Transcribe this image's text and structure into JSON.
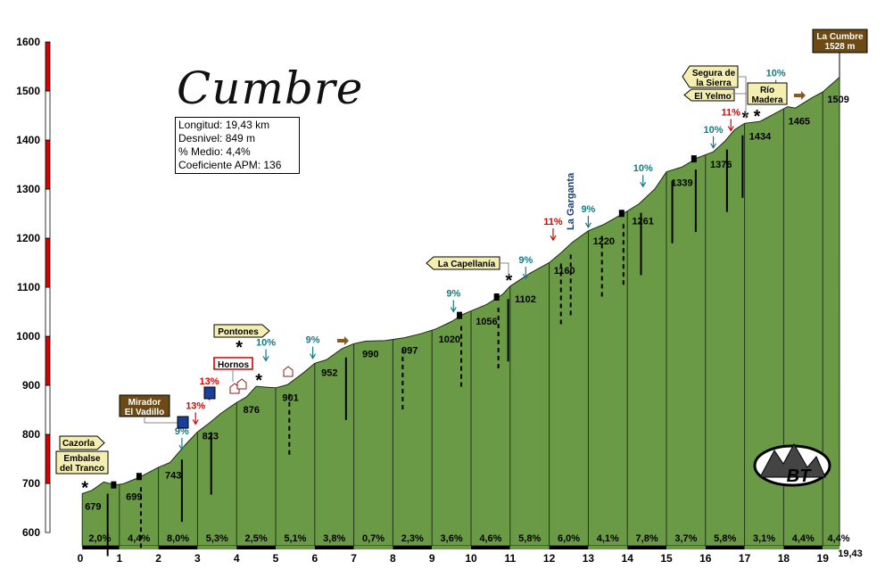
{
  "title": "Cumbre",
  "stats": {
    "distance": "Longitud: 19,43 km",
    "elevation_gain": "Desnivel: 849 m",
    "avg_grade": "% Medio: 4,4%",
    "apm": "Coeficiente APM: 136"
  },
  "summit_label": [
    "La Cumbre",
    "1528 m"
  ],
  "end_distance_label": "19,43",
  "colors": {
    "profile_fill": "#6a9a45",
    "axis_bar_red": "#d80000",
    "sign_yellow": "#f4eeb0",
    "sign_brown": "#6b4a16",
    "grade_red": "#e00000",
    "grade_teal": "#157a82"
  },
  "chart_data": {
    "type": "area",
    "xlabel": "",
    "ylabel": "",
    "xlim": [
      0,
      19.43
    ],
    "ylim": [
      600,
      1600
    ],
    "x_ticks": [
      0,
      1,
      2,
      3,
      4,
      5,
      6,
      7,
      8,
      9,
      10,
      11,
      12,
      13,
      14,
      15,
      16,
      17,
      18,
      19
    ],
    "y_ticks": [
      600,
      700,
      800,
      900,
      1000,
      1100,
      1200,
      1300,
      1400,
      1500,
      1600
    ],
    "profile": [
      {
        "x": 0.05,
        "y": 679
      },
      {
        "x": 0.3,
        "y": 686
      },
      {
        "x": 0.6,
        "y": 703
      },
      {
        "x": 0.9,
        "y": 697
      },
      {
        "x": 1.1,
        "y": 699
      },
      {
        "x": 1.5,
        "y": 712
      },
      {
        "x": 2.0,
        "y": 733
      },
      {
        "x": 2.3,
        "y": 743
      },
      {
        "x": 2.7,
        "y": 780
      },
      {
        "x": 3.0,
        "y": 805
      },
      {
        "x": 3.3,
        "y": 823
      },
      {
        "x": 3.6,
        "y": 843
      },
      {
        "x": 4.0,
        "y": 865
      },
      {
        "x": 4.25,
        "y": 876
      },
      {
        "x": 4.5,
        "y": 898
      },
      {
        "x": 4.8,
        "y": 896
      },
      {
        "x": 5.0,
        "y": 895
      },
      {
        "x": 5.3,
        "y": 901
      },
      {
        "x": 5.7,
        "y": 925
      },
      {
        "x": 6.0,
        "y": 945
      },
      {
        "x": 6.3,
        "y": 952
      },
      {
        "x": 6.7,
        "y": 975
      },
      {
        "x": 7.0,
        "y": 985
      },
      {
        "x": 7.3,
        "y": 990
      },
      {
        "x": 7.8,
        "y": 991
      },
      {
        "x": 8.3,
        "y": 997
      },
      {
        "x": 8.7,
        "y": 1005
      },
      {
        "x": 9.1,
        "y": 1015
      },
      {
        "x": 9.5,
        "y": 1030
      },
      {
        "x": 9.8,
        "y": 1045
      },
      {
        "x": 10.4,
        "y": 1065
      },
      {
        "x": 10.8,
        "y": 1085
      },
      {
        "x": 11.0,
        "y": 1102
      },
      {
        "x": 11.5,
        "y": 1128
      },
      {
        "x": 12.0,
        "y": 1150
      },
      {
        "x": 12.3,
        "y": 1170
      },
      {
        "x": 12.6,
        "y": 1192
      },
      {
        "x": 13.0,
        "y": 1215
      },
      {
        "x": 13.4,
        "y": 1228
      },
      {
        "x": 14.0,
        "y": 1255
      },
      {
        "x": 14.3,
        "y": 1270
      },
      {
        "x": 14.7,
        "y": 1300
      },
      {
        "x": 15.0,
        "y": 1335
      },
      {
        "x": 15.4,
        "y": 1345
      },
      {
        "x": 15.8,
        "y": 1364
      },
      {
        "x": 16.2,
        "y": 1376
      },
      {
        "x": 16.5,
        "y": 1398
      },
      {
        "x": 16.75,
        "y": 1421
      },
      {
        "x": 17.0,
        "y": 1434
      },
      {
        "x": 17.4,
        "y": 1438
      },
      {
        "x": 17.8,
        "y": 1455
      },
      {
        "x": 18.1,
        "y": 1468
      },
      {
        "x": 18.3,
        "y": 1465
      },
      {
        "x": 18.7,
        "y": 1485
      },
      {
        "x": 19.0,
        "y": 1498
      },
      {
        "x": 19.43,
        "y": 1528
      }
    ],
    "segment_grades": [
      "2,0%",
      "4,4%",
      "8,0%",
      "5,3%",
      "2,5%",
      "5,1%",
      "3,8%",
      "0,7%",
      "2,3%",
      "3,6%",
      "4,6%",
      "5,8%",
      "6,0%",
      "4,1%",
      "7,8%",
      "3,7%",
      "5,8%",
      "3,1%",
      "4,4%",
      "4,4%"
    ],
    "altitude_labels": [
      {
        "x": 0.05,
        "y": 679,
        "text": "679"
      },
      {
        "x": 1.1,
        "y": 699,
        "text": "699"
      },
      {
        "x": 2.1,
        "y": 743,
        "text": "743"
      },
      {
        "x": 3.05,
        "y": 823,
        "text": "823"
      },
      {
        "x": 4.1,
        "y": 876,
        "text": "876"
      },
      {
        "x": 5.1,
        "y": 901,
        "text": "901"
      },
      {
        "x": 6.1,
        "y": 952,
        "text": "952"
      },
      {
        "x": 7.15,
        "y": 990,
        "text": "990"
      },
      {
        "x": 8.15,
        "y": 997,
        "text": "997"
      },
      {
        "x": 9.1,
        "y": 1020,
        "text": "1020"
      },
      {
        "x": 10.05,
        "y": 1056,
        "text": "1056"
      },
      {
        "x": 11.05,
        "y": 1102,
        "text": "1102"
      },
      {
        "x": 12.05,
        "y": 1160,
        "text": "1160"
      },
      {
        "x": 13.05,
        "y": 1220,
        "text": "1220"
      },
      {
        "x": 14.05,
        "y": 1261,
        "text": "1261"
      },
      {
        "x": 15.05,
        "y": 1339,
        "text": "1339"
      },
      {
        "x": 16.05,
        "y": 1376,
        "text": "1376"
      },
      {
        "x": 17.05,
        "y": 1434,
        "text": "1434"
      },
      {
        "x": 18.05,
        "y": 1465,
        "text": "1465"
      },
      {
        "x": 19.05,
        "y": 1509,
        "text": "1509"
      }
    ],
    "ramp_grades": [
      {
        "text": "9%",
        "x": 2.6,
        "y": 800,
        "color": "teal"
      },
      {
        "text": "13%",
        "x": 2.95,
        "y": 852,
        "color": "red"
      },
      {
        "text": "13%",
        "x": 3.3,
        "y": 902,
        "color": "red"
      },
      {
        "text": "10%",
        "x": 4.75,
        "y": 981,
        "color": "teal"
      },
      {
        "text": "9%",
        "x": 5.95,
        "y": 986,
        "color": "teal"
      },
      {
        "text": "9%",
        "x": 9.55,
        "y": 1081,
        "color": "teal"
      },
      {
        "text": "9%",
        "x": 11.4,
        "y": 1149,
        "color": "teal"
      },
      {
        "text": "11%",
        "x": 12.1,
        "y": 1227,
        "color": "red"
      },
      {
        "text": "9%",
        "x": 13.0,
        "y": 1253,
        "color": "teal"
      },
      {
        "text": "10%",
        "x": 14.4,
        "y": 1336,
        "color": "teal"
      },
      {
        "text": "10%",
        "x": 16.2,
        "y": 1415,
        "color": "teal"
      },
      {
        "text": "11%",
        "x": 16.65,
        "y": 1450,
        "color": "red"
      },
      {
        "text": "10%",
        "x": 17.8,
        "y": 1530,
        "color": "teal"
      }
    ],
    "places": [
      {
        "text": "Cazorla",
        "style": "yellow"
      },
      {
        "text": "Embalse del Tranco",
        "style": "yellow"
      },
      {
        "text": "Mirador El Vadillo",
        "style": "brown"
      },
      {
        "text": "Pontones",
        "style": "yellow"
      },
      {
        "text": "Hornos",
        "style": "outline"
      },
      {
        "text": "La Capellanía",
        "style": "yellow"
      },
      {
        "text": "La Garganta",
        "style": "vertical"
      },
      {
        "text": "Segura de la Sierra",
        "style": "yellow"
      },
      {
        "text": "El Yelmo",
        "style": "yellow"
      },
      {
        "text": "Río Madera",
        "style": "yellow"
      }
    ]
  },
  "logo_text": "BT"
}
